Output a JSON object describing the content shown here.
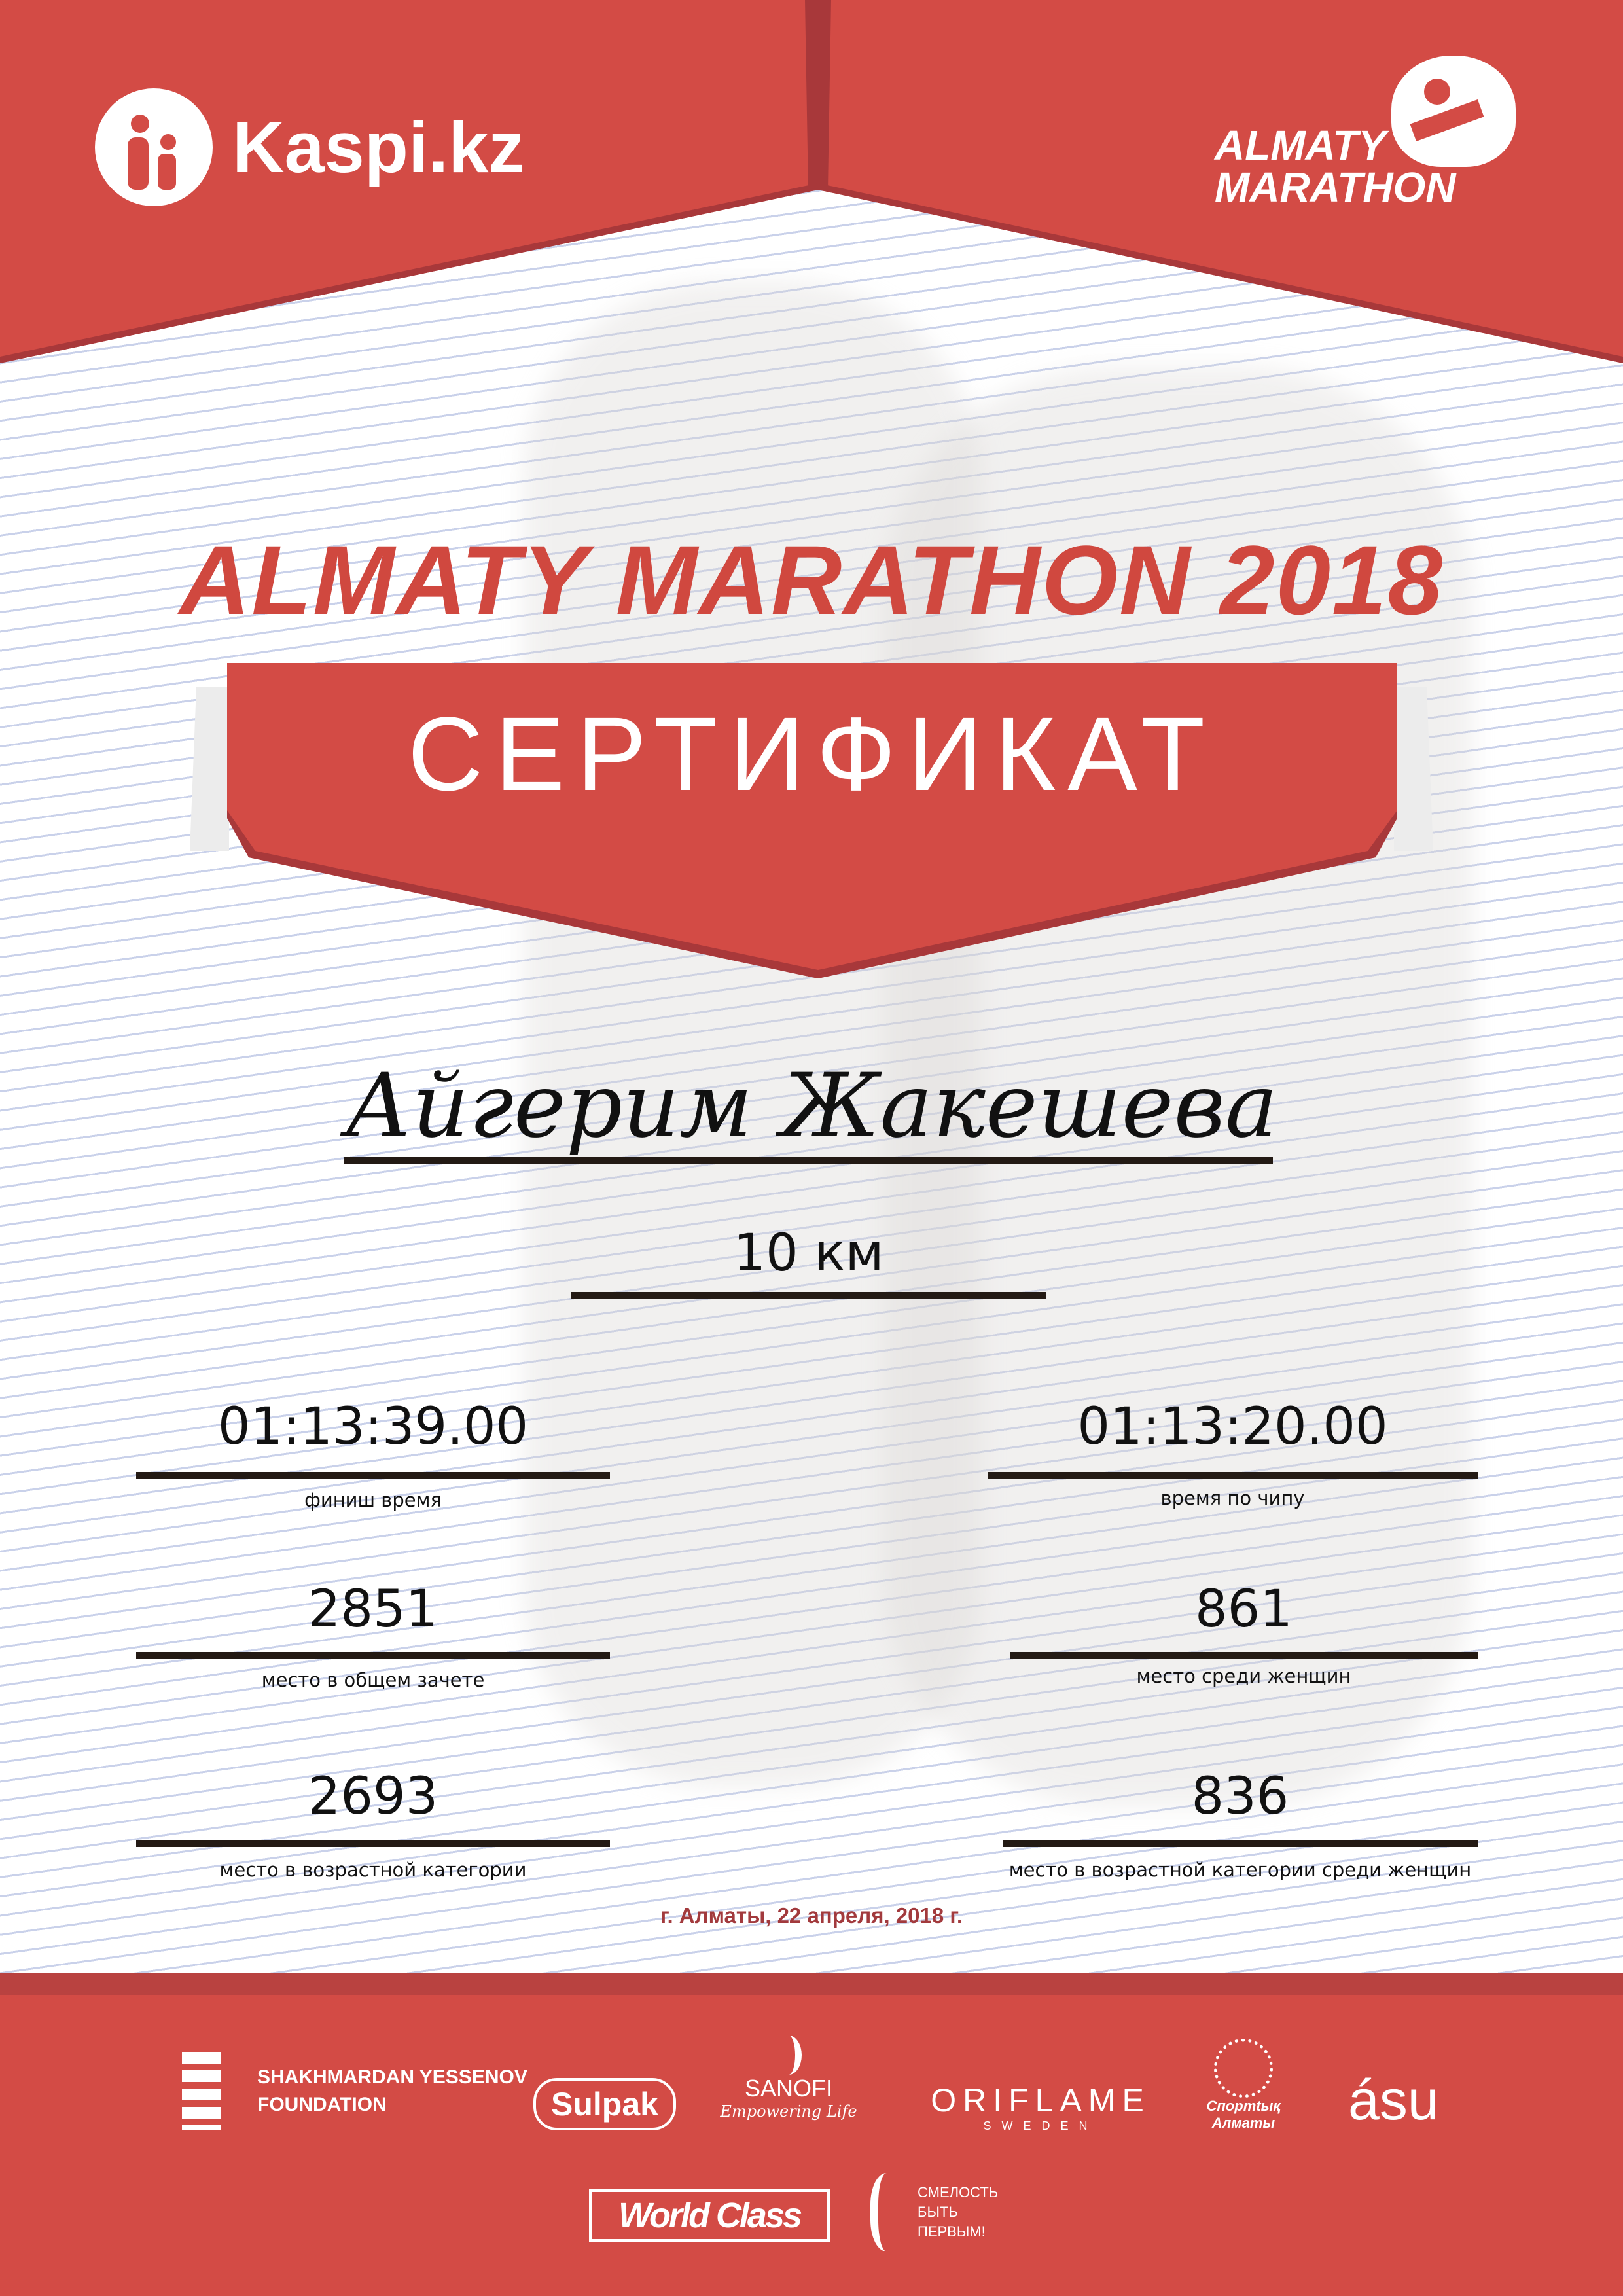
{
  "header": {
    "sponsor_logo": "Kaspi.kz",
    "event_logo": [
      "ALMATY",
      "MARATHON"
    ],
    "brand_color": "#d34b45"
  },
  "title": "ALMATY MARATHON 2018",
  "certificate_label": "СЕРТИФИКАТ",
  "participant_name": "Айгерим Жакешева",
  "distance": "10 км",
  "results": [
    {
      "value": "01:13:39.00",
      "label": "финиш время"
    },
    {
      "value": "01:13:20.00",
      "label": "время по чипу"
    },
    {
      "value": "2851",
      "label": "место в общем зачете"
    },
    {
      "value": "861",
      "label": "место среди женщин"
    },
    {
      "value": "2693",
      "label": "место в возрастной категории"
    },
    {
      "value": "836",
      "label": "место в возрастной категории среди женщин"
    }
  ],
  "date": "г. Алматы, 22 апреля, 2018 г.",
  "sponsors": {
    "yessenov": [
      "SHAKHMARDAN YESSENOV",
      "FOUNDATION"
    ],
    "sulpak": "Sulpak",
    "sanofi": [
      "SANOFI",
      "Empowering Life"
    ],
    "oriflame": [
      "ORIFLAME",
      "SWEDEN"
    ],
    "sport_almaty": [
      "Спортtық",
      "Алматы"
    ],
    "asu": "ásu",
    "worldclass": "World Class",
    "fund": [
      "СМЕЛОСТЬ",
      "БЫТЬ",
      "ПЕРВЫМ!"
    ]
  }
}
